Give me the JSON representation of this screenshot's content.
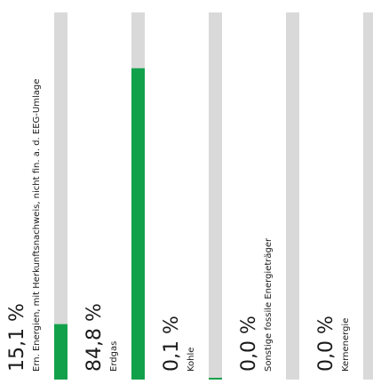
{
  "chart_data": {
    "type": "bar",
    "orientation": "vertical",
    "unit": "%",
    "ylim": [
      0,
      100
    ],
    "categories": [
      "Ern. Energien, mit Herkunftsnachweis, nicht fin. a. d. EEG-Umlage",
      "Erdgas",
      "Kohle",
      "Sonstige fossile Energieträger",
      "Kernenergie"
    ],
    "values": [
      15.1,
      84.8,
      0.1,
      0.0,
      0.0
    ],
    "value_labels": [
      "15,1 %",
      "84,8 %",
      "0,1 %",
      "0,0 %",
      "0,0 %"
    ],
    "colors": {
      "bar": "#12a14b",
      "track": "#d9d9d9"
    },
    "grid": false,
    "legend": "none"
  }
}
